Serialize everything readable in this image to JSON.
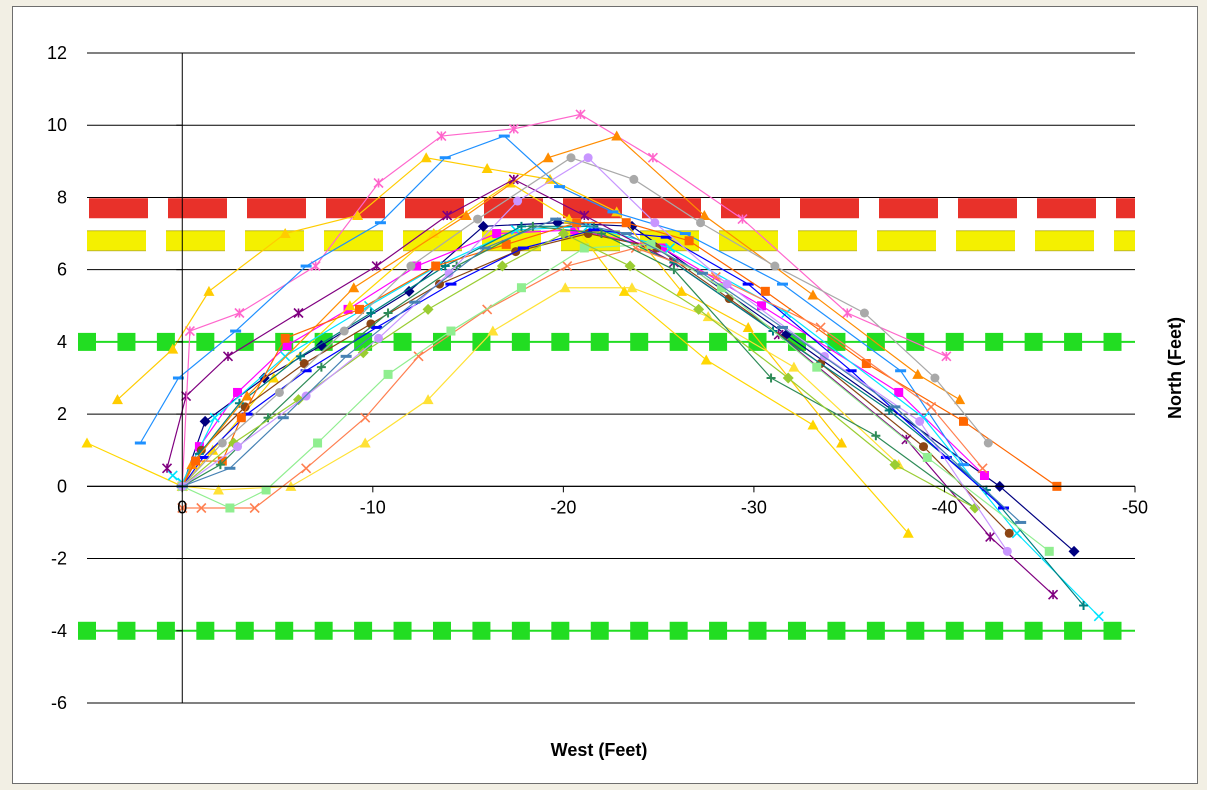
{
  "chart_data": {
    "type": "line",
    "title": "",
    "xlabel": "West (Feet)",
    "ylabel": "North (Feet)",
    "xlim": [
      5,
      -50
    ],
    "ylim": [
      -6,
      12
    ],
    "x_ticks": [
      0,
      -10,
      -20,
      -30,
      -40,
      -50
    ],
    "x_tick_labels": [
      "0",
      "-10",
      "-20",
      "-30",
      "-40",
      "-50"
    ],
    "y_ticks": [
      -6,
      -4,
      -2,
      0,
      2,
      4,
      6,
      8,
      10,
      12
    ],
    "y_tick_labels": [
      "-6",
      "-4",
      "-2",
      "0",
      "2",
      "4",
      "6",
      "8",
      "10",
      "12"
    ],
    "grid": "horizontal",
    "legend": "none",
    "reference_lines": [
      {
        "y": 7.7,
        "color": "#e8312a",
        "style": "dashed-thick"
      },
      {
        "y": 6.8,
        "color": "#f4f000",
        "style": "dashed-thick"
      },
      {
        "y": 4,
        "color": "#22dd22",
        "style": "square-markers"
      },
      {
        "y": -4,
        "color": "#22dd22",
        "style": "square-markers"
      }
    ],
    "series": [
      {
        "color": "#000080",
        "marker": "diamond",
        "x": [
          0,
          -1.2,
          -4.3,
          -7.3,
          -11.9,
          -15.8,
          -19.7,
          -23.6,
          -31.7,
          -42.9,
          -46.8
        ],
        "y": [
          0,
          1.8,
          3.0,
          3.9,
          5.4,
          7.2,
          7.3,
          7.2,
          4.2,
          0,
          -1.8
        ]
      },
      {
        "color": "#ff00ff",
        "marker": "square",
        "x": [
          0,
          -0.9,
          -2.9,
          -5.5,
          -8.7,
          -12.3,
          -16.5,
          -20.6,
          -25.2,
          -30.4,
          -37.6,
          -42.1
        ],
        "y": [
          0,
          1.1,
          2.6,
          3.9,
          4.9,
          6.1,
          7.0,
          7.1,
          6.6,
          5.0,
          2.6,
          0.3
        ]
      },
      {
        "color": "#ffd700",
        "marker": "triangle",
        "x": [
          5,
          0,
          -1.6,
          -4.8,
          -8.8,
          -13.2,
          -17.2,
          -20.3,
          -23.2,
          -27.5,
          -33.1,
          -38.1
        ],
        "y": [
          1.2,
          0,
          1.0,
          3.0,
          5.0,
          7.0,
          8.4,
          7.4,
          5.4,
          3.5,
          1.7,
          -1.3
        ]
      },
      {
        "color": "#00e5ff",
        "marker": "x",
        "x": [
          0.5,
          0,
          -1.7,
          -5.4,
          -9.8,
          -13.4,
          -17.5,
          -21.3,
          -25.6,
          -31.7,
          -38.9,
          -43.8,
          -48.1
        ],
        "y": [
          0.3,
          0.1,
          1.9,
          3.6,
          5.0,
          6.1,
          7.1,
          7.2,
          6.6,
          4.8,
          1.9,
          -1.3,
          -3.6
        ]
      },
      {
        "color": "#800080",
        "marker": "star",
        "x": [
          0.8,
          -0.2,
          -2.4,
          -6.1,
          -10.2,
          -13.9,
          -17.4,
          -21.1,
          -25.8,
          -31.3,
          -38.0,
          -42.4,
          -45.7
        ],
        "y": [
          0.5,
          2.5,
          3.6,
          4.8,
          6.1,
          7.5,
          8.5,
          7.5,
          6.2,
          4.2,
          1.3,
          -1.4,
          -3.0
        ]
      },
      {
        "color": "#8b4513",
        "marker": "circle",
        "x": [
          0,
          -1.0,
          -3.3,
          -6.4,
          -9.9,
          -13.5,
          -17.5,
          -21.3,
          -24.9,
          -28.7,
          -33.5,
          -38.9,
          -43.4
        ],
        "y": [
          0,
          1.0,
          2.2,
          3.4,
          4.5,
          5.6,
          6.5,
          7.0,
          6.6,
          5.2,
          3.4,
          1.1,
          -1.3
        ]
      },
      {
        "color": "#008080",
        "marker": "plus",
        "x": [
          0,
          -0.9,
          -3.0,
          -6.2,
          -9.9,
          -13.8,
          -17.8,
          -21.6,
          -25.8,
          -31.0,
          -37.1,
          -42.2,
          -47.3
        ],
        "y": [
          0,
          0.9,
          2.3,
          3.6,
          4.8,
          6.1,
          7.2,
          7.2,
          6.2,
          4.3,
          2.1,
          -0.1,
          -3.3
        ]
      },
      {
        "color": "#0000ff",
        "marker": "dash",
        "x": [
          0,
          -1.1,
          -3.4,
          -6.5,
          -10.2,
          -14.1,
          -17.9,
          -21.6,
          -25.4,
          -29.7,
          -35.1,
          -40.1,
          -43.1
        ],
        "y": [
          0,
          0.8,
          2.0,
          3.2,
          4.4,
          5.6,
          6.6,
          7.1,
          6.9,
          5.6,
          3.2,
          0.8,
          -0.6
        ]
      },
      {
        "color": "#ff66cc",
        "marker": "star",
        "x": [
          0,
          -0.4,
          -3.0,
          -7.0,
          -10.3,
          -13.6,
          -17.4,
          -20.9,
          -24.7,
          -29.4,
          -34.9,
          -40.1
        ],
        "y": [
          0,
          4.3,
          4.8,
          6.1,
          8.4,
          9.7,
          9.9,
          10.3,
          9.1,
          7.4,
          4.8,
          3.6
        ]
      },
      {
        "color": "#ff8c00",
        "marker": "triangle",
        "x": [
          0,
          -0.5,
          -3.4,
          -9.0,
          -14.9,
          -19.2,
          -22.8,
          -27.4,
          -33.1,
          -38.6,
          -40.8
        ],
        "y": [
          0,
          0.6,
          2.5,
          5.5,
          7.5,
          9.1,
          9.7,
          7.5,
          5.3,
          3.1,
          2.4
        ]
      },
      {
        "color": "#ffcc00",
        "marker": "triangle",
        "x": [
          3.4,
          0.5,
          -1.4,
          -5.4,
          -9.2,
          -12.8,
          -16.0,
          -19.3,
          -22.8,
          -26.2,
          -29.7,
          -34.6
        ],
        "y": [
          2.4,
          3.8,
          5.4,
          7.0,
          7.5,
          9.1,
          8.8,
          8.5,
          7.6,
          5.4,
          4.4,
          1.2
        ]
      },
      {
        "color": "#1e90ff",
        "marker": "dash",
        "x": [
          2.2,
          0.2,
          -2.8,
          -6.5,
          -10.4,
          -13.8,
          -16.9,
          -19.8,
          -22.6,
          -26.4,
          -31.5,
          -37.7,
          -41.0
        ],
        "y": [
          1.2,
          3.0,
          4.3,
          6.1,
          7.3,
          9.1,
          9.7,
          8.3,
          7.6,
          7.0,
          5.6,
          3.2,
          0.6
        ]
      },
      {
        "color": "#ff6600",
        "marker": "square",
        "x": [
          0,
          -0.7,
          -2.1,
          -3.1,
          -5.4,
          -9.3,
          -13.3,
          -17.0,
          -20.7,
          -23.3,
          -26.6,
          -30.6,
          -35.9,
          -41.0,
          -45.9
        ],
        "y": [
          0,
          0.7,
          0.7,
          1.9,
          4.1,
          4.9,
          6.1,
          6.7,
          7.3,
          7.3,
          6.8,
          5.4,
          3.4,
          1.8,
          0
        ]
      },
      {
        "color": "#ff7f50",
        "marker": "x",
        "x": [
          0,
          -1.0,
          -3.8,
          -6.5,
          -9.6,
          -12.4,
          -16.0,
          -20.2,
          -23.8,
          -28.0,
          -33.5,
          -39.3,
          -42.0
        ],
        "y": [
          -0.6,
          -0.6,
          -0.6,
          0.5,
          1.9,
          3.6,
          4.9,
          6.1,
          6.6,
          5.8,
          4.4,
          2.2,
          0.5
        ]
      },
      {
        "color": "#ffe135",
        "marker": "triangle",
        "x": [
          0,
          -1.9,
          -5.7,
          -9.6,
          -12.9,
          -16.3,
          -20.1,
          -23.6,
          -27.6,
          -32.1,
          -37.6
        ],
        "y": [
          0,
          -0.1,
          0,
          1.2,
          2.4,
          4.3,
          5.5,
          5.5,
          4.7,
          3.3,
          0.6
        ]
      },
      {
        "color": "#90ee90",
        "marker": "square",
        "x": [
          0,
          -2.5,
          -4.4,
          -7.1,
          -10.8,
          -14.1,
          -17.8,
          -21.1,
          -24.6,
          -28.3,
          -33.3,
          -39.1,
          -45.5
        ],
        "y": [
          0,
          -0.6,
          -0.1,
          1.2,
          3.1,
          4.3,
          5.5,
          6.6,
          6.7,
          5.5,
          3.3,
          0.8,
          -1.8
        ]
      },
      {
        "color": "#2e8b57",
        "marker": "plus",
        "x": [
          0,
          -2.0,
          -4.5,
          -7.3,
          -10.8,
          -14.4,
          -18.4,
          -22.0,
          -25.8,
          -30.9,
          -36.4,
          -41.6
        ],
        "y": [
          0,
          0.6,
          1.9,
          3.3,
          4.8,
          6.1,
          7.2,
          7.0,
          6.0,
          3.0,
          1.4,
          -0.6
        ]
      },
      {
        "color": "#9acd32",
        "marker": "diamond",
        "x": [
          0,
          -2.7,
          -6.1,
          -9.5,
          -12.9,
          -16.8,
          -20.0,
          -23.5,
          -27.1,
          -31.8,
          -37.4,
          -41.6
        ],
        "y": [
          0,
          1.2,
          2.4,
          3.7,
          4.9,
          6.1,
          7.0,
          6.1,
          4.9,
          3.0,
          0.6,
          -0.6
        ]
      },
      {
        "color": "#a9a9a9",
        "marker": "circle",
        "x": [
          0,
          -2.1,
          -5.1,
          -8.5,
          -12.0,
          -15.5,
          -20.4,
          -23.7,
          -27.2,
          -31.1,
          -35.8,
          -39.5,
          -42.3
        ],
        "y": [
          0,
          1.2,
          2.6,
          4.3,
          6.1,
          7.4,
          9.1,
          8.5,
          7.3,
          6.1,
          4.8,
          3.0,
          1.2
        ]
      },
      {
        "color": "#c896ff",
        "marker": "circle",
        "x": [
          0,
          -2.9,
          -6.5,
          -10.3,
          -14.0,
          -17.6,
          -21.3,
          -24.8,
          -28.6,
          -33.7,
          -38.7,
          -43.3
        ],
        "y": [
          0,
          1.1,
          2.5,
          4.1,
          5.9,
          7.9,
          9.1,
          7.3,
          5.6,
          3.6,
          1.8,
          -1.8
        ]
      },
      {
        "color": "#4682b4",
        "marker": "dash",
        "x": [
          0,
          -2.5,
          -5.3,
          -8.6,
          -12.2,
          -15.9,
          -19.6,
          -23.3,
          -27.3,
          -31.5,
          -37.4,
          -44.0
        ],
        "y": [
          0,
          0.5,
          1.9,
          3.6,
          5.1,
          6.6,
          7.4,
          7.0,
          5.9,
          4.4,
          2.2,
          -1.0
        ]
      }
    ]
  }
}
